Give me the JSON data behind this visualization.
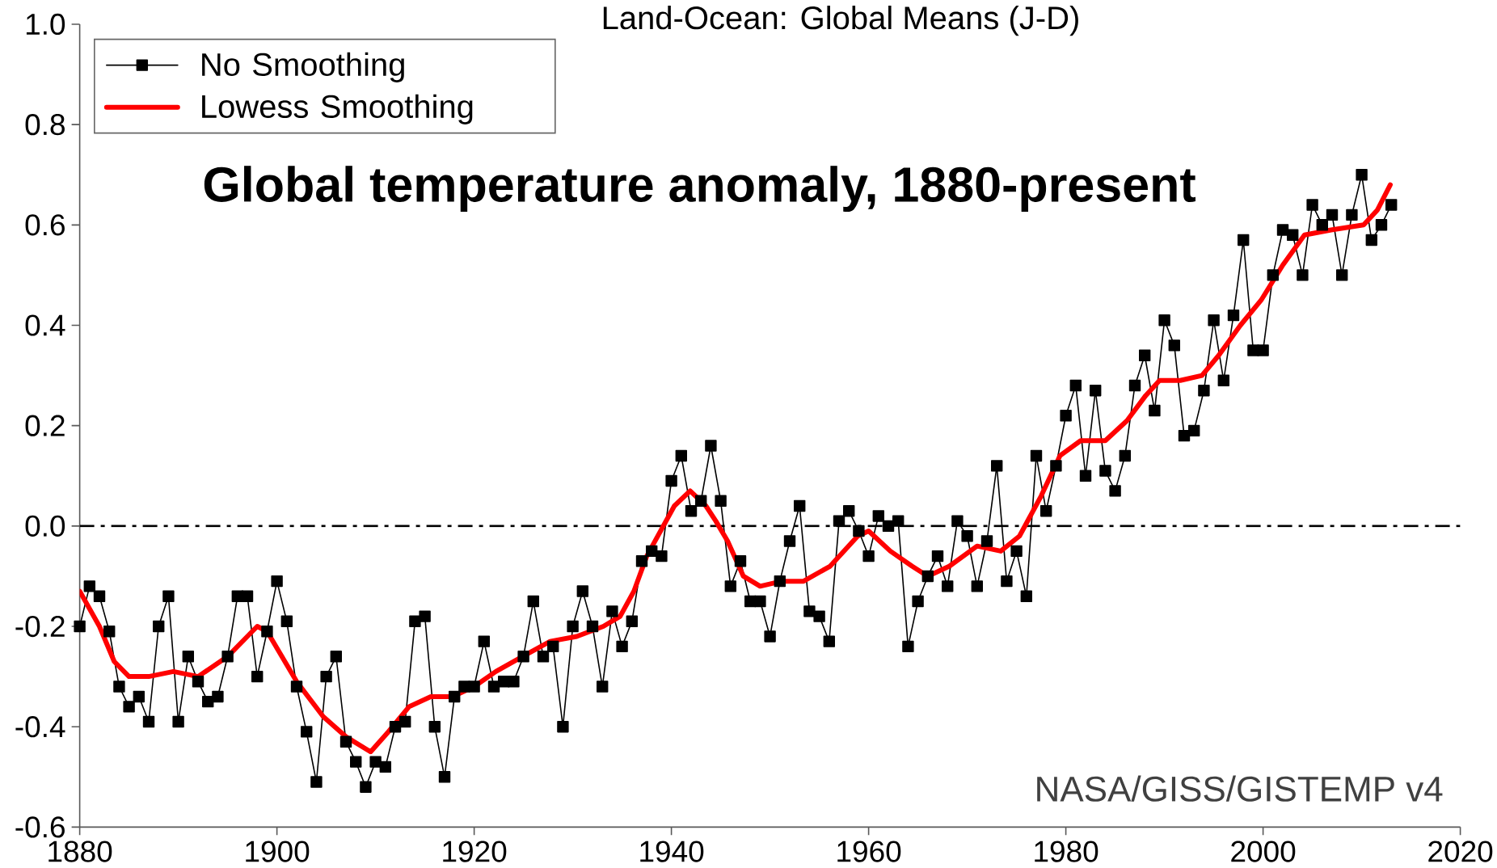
{
  "chart_data": {
    "type": "line",
    "title": "Land-Ocean: Global Means (J-D)",
    "subtitle": "Global temperature anomaly, 1880-present",
    "annotations": [
      "NASA/GISS/GISTEMP v4"
    ],
    "x": [
      1880,
      1881,
      1882,
      1883,
      1884,
      1885,
      1886,
      1887,
      1888,
      1889,
      1890,
      1891,
      1892,
      1893,
      1894,
      1895,
      1896,
      1897,
      1898,
      1899,
      1900,
      1901,
      1902,
      1903,
      1904,
      1905,
      1906,
      1907,
      1908,
      1909,
      1910,
      1911,
      1912,
      1913,
      1914,
      1915,
      1916,
      1917,
      1918,
      1919,
      1920,
      1921,
      1922,
      1923,
      1924,
      1925,
      1926,
      1927,
      1928,
      1929,
      1930,
      1931,
      1932,
      1933,
      1934,
      1935,
      1936,
      1937,
      1938,
      1939,
      1940,
      1941,
      1942,
      1943,
      1944,
      1945,
      1946,
      1947,
      1948,
      1949,
      1950,
      1951,
      1952,
      1953,
      1954,
      1955,
      1956,
      1957,
      1958,
      1959,
      1960,
      1961,
      1962,
      1963,
      1964,
      1965,
      1966,
      1967,
      1968,
      1969,
      1970,
      1971,
      1972,
      1973,
      1974,
      1975,
      1976,
      1977,
      1978,
      1979,
      1980,
      1981,
      1982,
      1983,
      1984,
      1985,
      1986,
      1987,
      1988,
      1989,
      1990,
      1991,
      1992,
      1993,
      1994,
      1995,
      1996,
      1997,
      1998,
      1999,
      2000,
      2001,
      2002,
      2003,
      2004,
      2005,
      2006,
      2007,
      2008,
      2009,
      2010,
      2011,
      2012,
      2013
    ],
    "series": [
      {
        "name": "No Smoothing",
        "color": "#000000",
        "marker": "square",
        "values": [
          -0.2,
          -0.12,
          -0.14,
          -0.21,
          -0.32,
          -0.36,
          -0.34,
          -0.39,
          -0.2,
          -0.14,
          -0.39,
          -0.26,
          -0.31,
          -0.35,
          -0.34,
          -0.26,
          -0.14,
          -0.14,
          -0.3,
          -0.21,
          -0.11,
          -0.19,
          -0.32,
          -0.41,
          -0.51,
          -0.3,
          -0.26,
          -0.43,
          -0.47,
          -0.52,
          -0.47,
          -0.48,
          -0.4,
          -0.39,
          -0.19,
          -0.18,
          -0.4,
          -0.5,
          -0.34,
          -0.32,
          -0.32,
          -0.23,
          -0.32,
          -0.31,
          -0.31,
          -0.26,
          -0.15,
          -0.26,
          -0.24,
          -0.4,
          -0.2,
          -0.13,
          -0.2,
          -0.32,
          -0.17,
          -0.24,
          -0.19,
          -0.07,
          -0.05,
          -0.06,
          0.09,
          0.14,
          0.03,
          0.05,
          0.16,
          0.05,
          -0.12,
          -0.07,
          -0.15,
          -0.15,
          -0.22,
          -0.11,
          -0.03,
          0.04,
          -0.17,
          -0.18,
          -0.23,
          0.01,
          0.03,
          -0.01,
          -0.06,
          0.02,
          0.0,
          0.01,
          -0.24,
          -0.15,
          -0.1,
          -0.06,
          -0.12,
          0.01,
          -0.02,
          -0.12,
          -0.03,
          0.12,
          -0.11,
          -0.05,
          -0.14,
          0.14,
          0.03,
          0.12,
          0.22,
          0.28,
          0.1,
          0.27,
          0.11,
          0.07,
          0.14,
          0.28,
          0.34,
          0.23,
          0.41,
          0.36,
          0.18,
          0.19,
          0.27,
          0.41,
          0.29,
          0.42,
          0.57,
          0.35,
          0.35,
          0.5,
          0.59,
          0.58,
          0.5,
          0.64,
          0.6,
          0.62,
          0.5,
          0.62,
          0.7,
          0.57,
          0.6,
          0.64
        ]
      },
      {
        "name": "Lowess Smoothing",
        "color": "#ff0000",
        "marker": "none",
        "x": [
          1880,
          1882,
          1883.5,
          1885,
          1887,
          1889.5,
          1892,
          1895,
          1898,
          1899,
          1902,
          1904.7,
          1907,
          1909.5,
          1911.3,
          1913.4,
          1915.6,
          1917.8,
          1920,
          1922.2,
          1924.9,
          1927.7,
          1930.4,
          1933.1,
          1934.8,
          1936.2,
          1937.5,
          1938.9,
          1940.3,
          1941.9,
          1943.5,
          1944.5,
          1945.7,
          1947.3,
          1949,
          1951.2,
          1953.4,
          1956.1,
          1958.9,
          1960,
          1962.2,
          1964.4,
          1966,
          1968.2,
          1971,
          1973.4,
          1975.3,
          1977.5,
          1979.4,
          1981.5,
          1984,
          1986.2,
          1988.1,
          1989.5,
          1991.6,
          1993.8,
          1995.5,
          1997.7,
          1999.8,
          2002,
          2004.2,
          2006.9,
          2010.2,
          2011.6,
          2012.9
        ],
        "values": [
          -0.13,
          -0.2,
          -0.27,
          -0.3,
          -0.3,
          -0.29,
          -0.3,
          -0.26,
          -0.2,
          -0.21,
          -0.31,
          -0.38,
          -0.42,
          -0.45,
          -0.41,
          -0.36,
          -0.34,
          -0.34,
          -0.32,
          -0.29,
          -0.26,
          -0.23,
          -0.22,
          -0.2,
          -0.18,
          -0.13,
          -0.06,
          -0.01,
          0.04,
          0.07,
          0.04,
          0.01,
          -0.03,
          -0.1,
          -0.12,
          -0.11,
          -0.11,
          -0.08,
          -0.02,
          -0.01,
          -0.05,
          -0.08,
          -0.1,
          -0.08,
          -0.04,
          -0.05,
          -0.02,
          0.06,
          0.14,
          0.17,
          0.17,
          0.21,
          0.26,
          0.29,
          0.29,
          0.3,
          0.34,
          0.4,
          0.45,
          0.52,
          0.58,
          0.59,
          0.6,
          0.63,
          0.68
        ]
      }
    ],
    "xlim": [
      1880,
      2020
    ],
    "ylim": [
      -0.6,
      1.0
    ],
    "xticks": [
      1880,
      1900,
      1920,
      1940,
      1960,
      1980,
      2000,
      2020
    ],
    "yticks": [
      -0.6,
      -0.4,
      -0.2,
      {
        "value": 0,
        "label": "0.0"
      },
      0.2,
      0.4,
      0.6,
      0.8,
      {
        "value": 1,
        "label": "1.0"
      }
    ],
    "ref_lines": [
      {
        "axis": "y",
        "value": 0,
        "line_style": "dashed",
        "color": "#000000"
      }
    ],
    "legend": "top left"
  }
}
